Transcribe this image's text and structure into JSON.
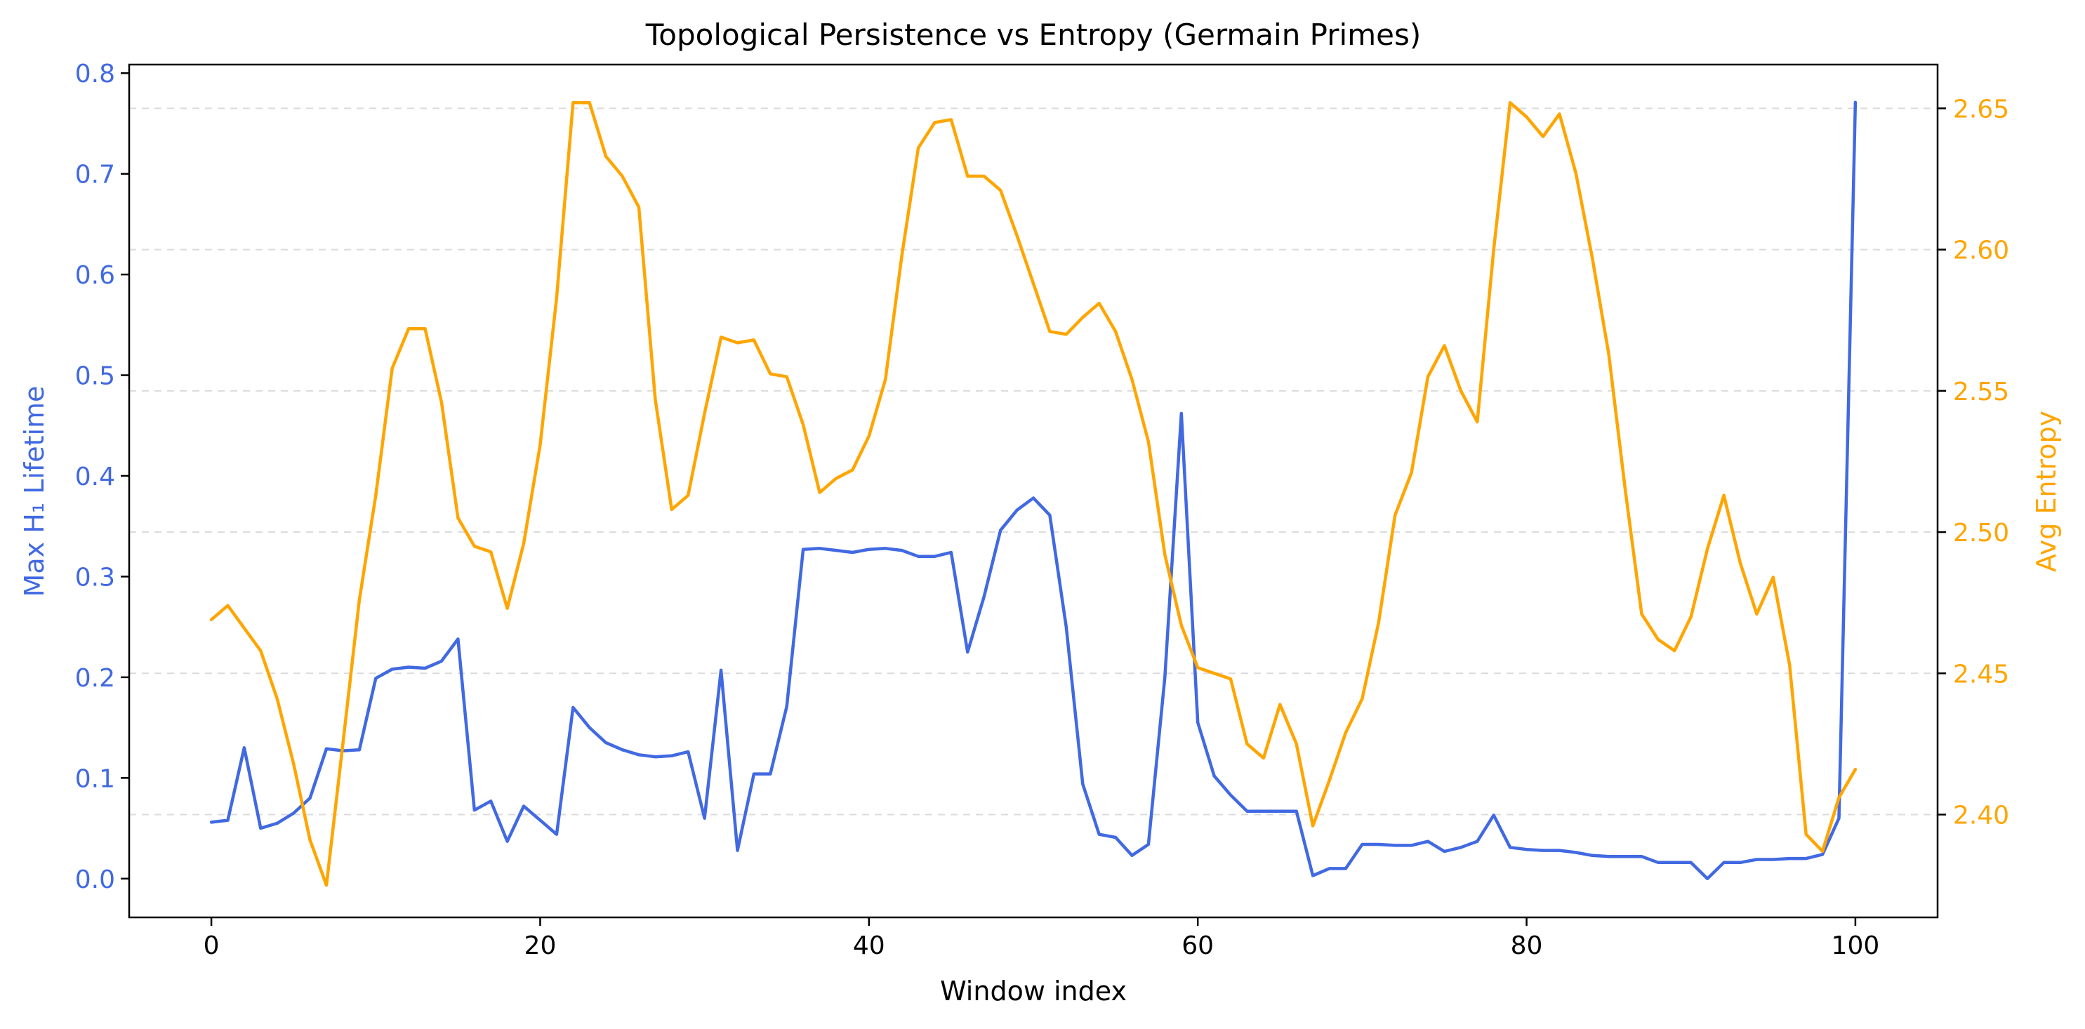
{
  "chart_data": {
    "type": "line",
    "title": "Topological Persistence vs Entropy (Germain Primes)",
    "xlabel": "Window index",
    "xlim": [
      -5,
      105
    ],
    "xticks": [
      0,
      20,
      40,
      60,
      80,
      100
    ],
    "grid": "horizontal dashed (right axis)",
    "colors": {
      "left": "#4169e1",
      "right": "#ffa500",
      "grid": "#cccccc",
      "axis": "#000000"
    },
    "y_left": {
      "label": "Max H₁ Lifetime",
      "lim": [
        -0.0385,
        0.8085
      ],
      "ticks": [
        "0.0",
        "0.1",
        "0.2",
        "0.3",
        "0.4",
        "0.5",
        "0.6",
        "0.7",
        "0.8"
      ],
      "tick_values": [
        0,
        0.1,
        0.2,
        0.3,
        0.4,
        0.5,
        0.6,
        0.7,
        0.8
      ]
    },
    "y_right": {
      "label": "Avg Entropy",
      "lim": [
        2.3636,
        2.6655
      ],
      "ticks": [
        "2.40",
        "2.45",
        "2.50",
        "2.55",
        "2.60",
        "2.65"
      ],
      "tick_values": [
        2.4,
        2.45,
        2.5,
        2.55,
        2.6,
        2.65
      ]
    },
    "x": [
      0,
      1,
      2,
      3,
      4,
      5,
      6,
      7,
      8,
      9,
      10,
      11,
      12,
      13,
      14,
      15,
      16,
      17,
      18,
      19,
      20,
      21,
      22,
      23,
      24,
      25,
      26,
      27,
      28,
      29,
      30,
      31,
      32,
      33,
      34,
      35,
      36,
      37,
      38,
      39,
      40,
      41,
      42,
      43,
      44,
      45,
      46,
      47,
      48,
      49,
      50,
      51,
      52,
      53,
      54,
      55,
      56,
      57,
      58,
      59,
      60,
      61,
      62,
      63,
      64,
      65,
      66,
      67,
      68,
      69,
      70,
      71,
      72,
      73,
      74,
      75,
      76,
      77,
      78,
      79,
      80,
      81,
      82,
      83,
      84,
      85,
      86,
      87,
      88,
      89,
      90,
      91,
      92,
      93,
      94,
      95,
      96,
      97,
      98,
      99,
      100
    ],
    "series": [
      {
        "name": "Max H₁ Lifetime",
        "axis": "left",
        "color": "#4169e1",
        "values": [
          0.056,
          0.058,
          0.13,
          0.05,
          0.055,
          0.065,
          0.08,
          0.129,
          0.127,
          0.128,
          0.199,
          0.208,
          0.21,
          0.209,
          0.216,
          0.238,
          0.068,
          0.077,
          0.037,
          0.072,
          0.058,
          0.044,
          0.17,
          0.15,
          0.135,
          0.128,
          0.123,
          0.121,
          0.122,
          0.126,
          0.06,
          0.207,
          0.028,
          0.104,
          0.104,
          0.171,
          0.327,
          0.328,
          0.326,
          0.324,
          0.327,
          0.328,
          0.326,
          0.32,
          0.32,
          0.324,
          0.225,
          0.28,
          0.346,
          0.366,
          0.378,
          0.361,
          0.25,
          0.094,
          0.044,
          0.041,
          0.023,
          0.034,
          0.2,
          0.462,
          0.155,
          0.102,
          0.083,
          0.067,
          0.067,
          0.067,
          0.067,
          0.003,
          0.01,
          0.01,
          0.034,
          0.034,
          0.033,
          0.033,
          0.037,
          0.027,
          0.031,
          0.037,
          0.063,
          0.031,
          0.029,
          0.028,
          0.028,
          0.026,
          0.023,
          0.022,
          0.022,
          0.022,
          0.016,
          0.016,
          0.016,
          0.0,
          0.016,
          0.016,
          0.019,
          0.019,
          0.02,
          0.02,
          0.024,
          0.06,
          0.771
        ]
      },
      {
        "name": "Avg Entropy",
        "axis": "right",
        "color": "#ffa500",
        "values": [
          2.469,
          2.474,
          2.466,
          2.458,
          2.441,
          2.418,
          2.391,
          2.375,
          2.425,
          2.476,
          2.513,
          2.558,
          2.572,
          2.572,
          2.546,
          2.505,
          2.495,
          2.493,
          2.473,
          2.496,
          2.531,
          2.583,
          2.652,
          2.652,
          2.633,
          2.626,
          2.615,
          2.547,
          2.508,
          2.513,
          2.542,
          2.569,
          2.567,
          2.568,
          2.556,
          2.555,
          2.538,
          2.514,
          2.519,
          2.522,
          2.534,
          2.554,
          2.598,
          2.636,
          2.645,
          2.646,
          2.626,
          2.626,
          2.621,
          2.605,
          2.588,
          2.571,
          2.57,
          2.576,
          2.581,
          2.571,
          2.554,
          2.532,
          2.492,
          2.467,
          2.452,
          2.45,
          2.448,
          2.425,
          2.42,
          2.439,
          2.425,
          2.396,
          2.412,
          2.429,
          2.441,
          2.468,
          2.506,
          2.521,
          2.555,
          2.566,
          2.55,
          2.539,
          2.6,
          2.652,
          2.647,
          2.64,
          2.648,
          2.627,
          2.597,
          2.563,
          2.515,
          2.471,
          2.462,
          2.458,
          2.47,
          2.494,
          2.513,
          2.489,
          2.471,
          2.484,
          2.453,
          2.393,
          2.387,
          2.406,
          2.416
        ]
      }
    ]
  }
}
